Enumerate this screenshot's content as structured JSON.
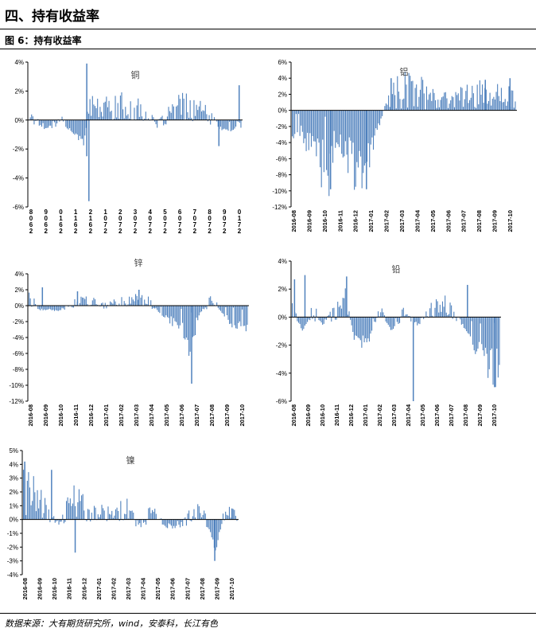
{
  "header": {
    "section_title": "四、持有收益率",
    "figure_label": "图 6：持有收益率"
  },
  "footer": {
    "source": "数据来源：大有期货研究所，wind，安泰科，长江有色"
  },
  "colors": {
    "bar": "#4f81bd",
    "axis": "#000000"
  },
  "chart_data": [
    {
      "id": "copper",
      "type": "bar",
      "title": "铜",
      "yticks": [
        "4%",
        "2%",
        "0%",
        "-2%",
        "-4%",
        "-6%"
      ],
      "ylim": [
        -6,
        4
      ],
      "xticks": [
        "8",
        "9",
        "0",
        "1",
        "2",
        "1",
        "2",
        "3",
        "4",
        "5",
        "6",
        "7",
        "8",
        "9",
        "0"
      ],
      "xticks_row2": [
        "0",
        "0",
        "1",
        "1",
        "1",
        "0",
        "0",
        "0",
        "0",
        "0",
        "0",
        "0",
        "0",
        "0",
        "1"
      ],
      "xticks_row3": [
        "6",
        "6",
        "6",
        "6",
        "6",
        "7",
        "7",
        "7",
        "7",
        "7",
        "7",
        "7",
        "7",
        "7",
        "7"
      ],
      "xticks_row4": [
        "2",
        "2",
        "2",
        "2",
        "2",
        "2",
        "2",
        "2",
        "2",
        "2",
        "2",
        "2",
        "2",
        "2",
        "2"
      ],
      "profile": [
        [
          0,
          0.3
        ],
        [
          0.05,
          -0.3
        ],
        [
          0.1,
          -0.5
        ],
        [
          0.15,
          0.1
        ],
        [
          0.2,
          -0.8
        ],
        [
          0.26,
          -1.5
        ],
        [
          0.28,
          1.0
        ],
        [
          0.35,
          0.8
        ],
        [
          0.45,
          1.0
        ],
        [
          0.55,
          0.5
        ],
        [
          0.6,
          -0.4
        ],
        [
          0.66,
          0.4
        ],
        [
          0.72,
          1.0
        ],
        [
          0.82,
          0.6
        ],
        [
          0.9,
          -0.5
        ],
        [
          0.95,
          -0.8
        ],
        [
          1,
          -0.2
        ]
      ],
      "spikes": [
        [
          0.27,
          3.9
        ],
        [
          0.28,
          -5.6
        ],
        [
          0.27,
          -2.5
        ],
        [
          0.985,
          2.4
        ],
        [
          0.89,
          -1.8
        ]
      ]
    },
    {
      "id": "aluminum",
      "type": "bar",
      "title": "铝",
      "yticks": [
        "6%",
        "4%",
        "2%",
        "0%",
        "-2%",
        "-4%",
        "-6%",
        "-8%",
        "-10%",
        "-12%"
      ],
      "ylim": [
        -12,
        6
      ],
      "xticks": [
        "2016-08",
        "2016-09",
        "2016-10",
        "2016-11",
        "2016-12",
        "2017-01",
        "2017-02",
        "2017-03",
        "2017-04",
        "2017-05",
        "2017-06",
        "2017-07",
        "2017-08",
        "2017-09",
        "2017-10"
      ],
      "profile": [
        [
          0,
          -2.5
        ],
        [
          0.06,
          -3.5
        ],
        [
          0.12,
          -6
        ],
        [
          0.16,
          -8
        ],
        [
          0.2,
          -3
        ],
        [
          0.26,
          -6
        ],
        [
          0.3,
          -8
        ],
        [
          0.36,
          -4
        ],
        [
          0.4,
          -1
        ],
        [
          0.42,
          0.5
        ],
        [
          0.46,
          2.5
        ],
        [
          0.52,
          3
        ],
        [
          0.6,
          2.5
        ],
        [
          0.66,
          1
        ],
        [
          0.72,
          1.5
        ],
        [
          0.8,
          2
        ],
        [
          0.86,
          2.5
        ],
        [
          0.92,
          2
        ],
        [
          1,
          1.5
        ]
      ],
      "spikes": [
        [
          0.17,
          -9.8
        ],
        [
          0.33,
          -9.8
        ],
        [
          0.44,
          4.0
        ],
        [
          0.86,
          3.8
        ],
        [
          0.97,
          4.0
        ]
      ]
    },
    {
      "id": "zinc",
      "type": "bar",
      "title": "锌",
      "yticks": [
        "4%",
        "2%",
        "0%",
        "-2%",
        "-4%",
        "-6%",
        "-8%",
        "-10%",
        "-12%"
      ],
      "ylim": [
        -12,
        4
      ],
      "xticks": [
        "2016-08",
        "2016-09",
        "2016-10",
        "2016-11",
        "2016-12",
        "2017-01",
        "2017-02",
        "2017-03",
        "2017-04",
        "2017-05",
        "2017-06",
        "2017-07",
        "2017-08",
        "2017-09",
        "2017-10"
      ],
      "profile": [
        [
          0,
          0.8
        ],
        [
          0.06,
          -0.5
        ],
        [
          0.14,
          -0.6
        ],
        [
          0.2,
          0.2
        ],
        [
          0.28,
          0.8
        ],
        [
          0.36,
          0
        ],
        [
          0.46,
          0.8
        ],
        [
          0.52,
          1.0
        ],
        [
          0.56,
          0.2
        ],
        [
          0.6,
          -1
        ],
        [
          0.66,
          -2
        ],
        [
          0.7,
          -3.5
        ],
        [
          0.74,
          -5
        ],
        [
          0.78,
          -1
        ],
        [
          0.84,
          0.8
        ],
        [
          0.9,
          -1.5
        ],
        [
          0.95,
          -2.5
        ],
        [
          1,
          -2.5
        ]
      ],
      "spikes": [
        [
          0.06,
          2.3
        ],
        [
          0.74,
          -9.8
        ],
        [
          0.22,
          1.8
        ],
        [
          0.5,
          2.0
        ]
      ]
    },
    {
      "id": "lead",
      "type": "bar",
      "title": "铅",
      "yticks": [
        "4%",
        "2%",
        "0%",
        "-2%",
        "-4%",
        "-6%"
      ],
      "ylim": [
        -6,
        4
      ],
      "xticks": [
        "2016-08",
        "2016-09",
        "2016-10",
        "2016-11",
        "2016-12",
        "2017-01",
        "2017-02",
        "2017-03",
        "2017-04",
        "2017-05",
        "2017-06",
        "2017-07",
        "2017-08",
        "2017-09",
        "2017-10"
      ],
      "profile": [
        [
          0,
          0.5
        ],
        [
          0.05,
          -1
        ],
        [
          0.1,
          0.5
        ],
        [
          0.15,
          -0.5
        ],
        [
          0.2,
          0.4
        ],
        [
          0.26,
          1.2
        ],
        [
          0.3,
          -1.5
        ],
        [
          0.36,
          -2
        ],
        [
          0.42,
          0.5
        ],
        [
          0.48,
          -1
        ],
        [
          0.54,
          0.3
        ],
        [
          0.6,
          -0.5
        ],
        [
          0.68,
          0.5
        ],
        [
          0.76,
          0.8
        ],
        [
          0.82,
          -0.5
        ],
        [
          0.88,
          -2
        ],
        [
          0.93,
          -3.5
        ],
        [
          0.98,
          -4
        ],
        [
          1,
          -3
        ]
      ],
      "spikes": [
        [
          0.01,
          2.7
        ],
        [
          0.06,
          3.0
        ],
        [
          0.26,
          2.9
        ],
        [
          0.58,
          -6.0
        ],
        [
          0.84,
          2.3
        ],
        [
          0.97,
          -5.0
        ]
      ]
    },
    {
      "id": "nickel",
      "type": "bar",
      "title": "镍",
      "yticks": [
        "5%",
        "4%",
        "3%",
        "2%",
        "1%",
        "0%",
        "-1%",
        "-2%",
        "-3%",
        "-4%"
      ],
      "ylim": [
        -4,
        5
      ],
      "xticks": [
        "2016-08",
        "2016-09",
        "2016-10",
        "2016-11",
        "2016-12",
        "2017-01",
        "2017-02",
        "2017-03",
        "2017-04",
        "2017-05",
        "2017-06",
        "2017-07",
        "2017-08",
        "2017-09",
        "2017-10"
      ],
      "profile": [
        [
          0,
          2.8
        ],
        [
          0.05,
          1.8
        ],
        [
          0.1,
          1.0
        ],
        [
          0.16,
          -0.5
        ],
        [
          0.22,
          1.2
        ],
        [
          0.26,
          1.5
        ],
        [
          0.3,
          0.3
        ],
        [
          0.36,
          0.8
        ],
        [
          0.42,
          0.2
        ],
        [
          0.48,
          1.0
        ],
        [
          0.54,
          -0.5
        ],
        [
          0.6,
          0.5
        ],
        [
          0.66,
          -0.4
        ],
        [
          0.72,
          -0.6
        ],
        [
          0.78,
          0.2
        ],
        [
          0.84,
          0.6
        ],
        [
          0.88,
          -1.2
        ],
        [
          0.9,
          -2
        ],
        [
          0.94,
          0.4
        ],
        [
          1,
          0.2
        ]
      ],
      "spikes": [
        [
          0.005,
          4.2
        ],
        [
          0.13,
          3.6
        ],
        [
          0.24,
          -2.4
        ],
        [
          0.89,
          -3.0
        ],
        [
          0.97,
          0.8
        ]
      ]
    }
  ]
}
